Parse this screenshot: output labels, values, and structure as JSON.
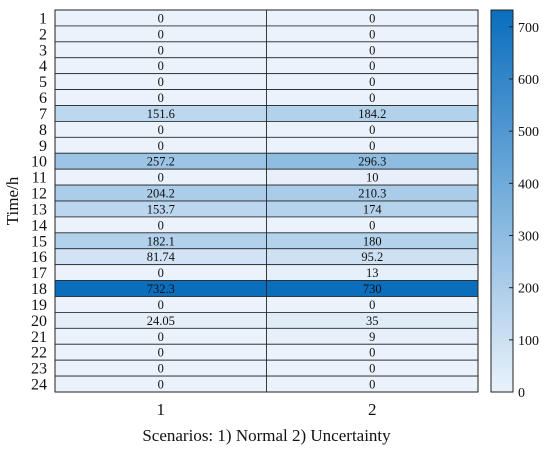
{
  "chart_data": {
    "type": "heatmap",
    "title": "",
    "xlabel": "Scenarios: 1) Normal 2) Uncertainty",
    "ylabel": "Time/h",
    "x_categories": [
      "1",
      "2"
    ],
    "y_categories": [
      "1",
      "2",
      "3",
      "4",
      "5",
      "6",
      "7",
      "8",
      "9",
      "10",
      "11",
      "12",
      "13",
      "14",
      "15",
      "16",
      "17",
      "18",
      "19",
      "20",
      "21",
      "22",
      "23",
      "24"
    ],
    "value_labels": [
      [
        "0",
        "0"
      ],
      [
        "0",
        "0"
      ],
      [
        "0",
        "0"
      ],
      [
        "0",
        "0"
      ],
      [
        "0",
        "0"
      ],
      [
        "0",
        "0"
      ],
      [
        "151.6",
        "184.2"
      ],
      [
        "0",
        "0"
      ],
      [
        "0",
        "0"
      ],
      [
        "257.2",
        "296.3"
      ],
      [
        "0",
        "10"
      ],
      [
        "204.2",
        "210.3"
      ],
      [
        "153.7",
        "174"
      ],
      [
        "0",
        "0"
      ],
      [
        "182.1",
        "180"
      ],
      [
        "81.74",
        "95.2"
      ],
      [
        "0",
        "13"
      ],
      [
        "732.3",
        "730"
      ],
      [
        "0",
        "0"
      ],
      [
        "24.05",
        "35"
      ],
      [
        "0",
        "9"
      ],
      [
        "0",
        "0"
      ],
      [
        "0",
        "0"
      ],
      [
        "0",
        "0"
      ]
    ],
    "values": [
      [
        0,
        0
      ],
      [
        0,
        0
      ],
      [
        0,
        0
      ],
      [
        0,
        0
      ],
      [
        0,
        0
      ],
      [
        0,
        0
      ],
      [
        151.6,
        184.2
      ],
      [
        0,
        0
      ],
      [
        0,
        0
      ],
      [
        257.2,
        296.3
      ],
      [
        0,
        10
      ],
      [
        204.2,
        210.3
      ],
      [
        153.7,
        174
      ],
      [
        0,
        0
      ],
      [
        182.1,
        180
      ],
      [
        81.74,
        95.2
      ],
      [
        0,
        13
      ],
      [
        732.3,
        730
      ],
      [
        0,
        0
      ],
      [
        24.05,
        35
      ],
      [
        0,
        9
      ],
      [
        0,
        0
      ],
      [
        0,
        0
      ],
      [
        0,
        0
      ]
    ],
    "colorbar": {
      "range": [
        0,
        732.3
      ],
      "ticks": [
        "0",
        "100",
        "200",
        "300",
        "400",
        "500",
        "600",
        "700"
      ],
      "tick_values": [
        0,
        100,
        200,
        300,
        400,
        500,
        600,
        700
      ],
      "color_low": "#eaf2fb",
      "color_high": "#0a6ebd"
    },
    "grid": true,
    "legend": "colorbar-right"
  }
}
